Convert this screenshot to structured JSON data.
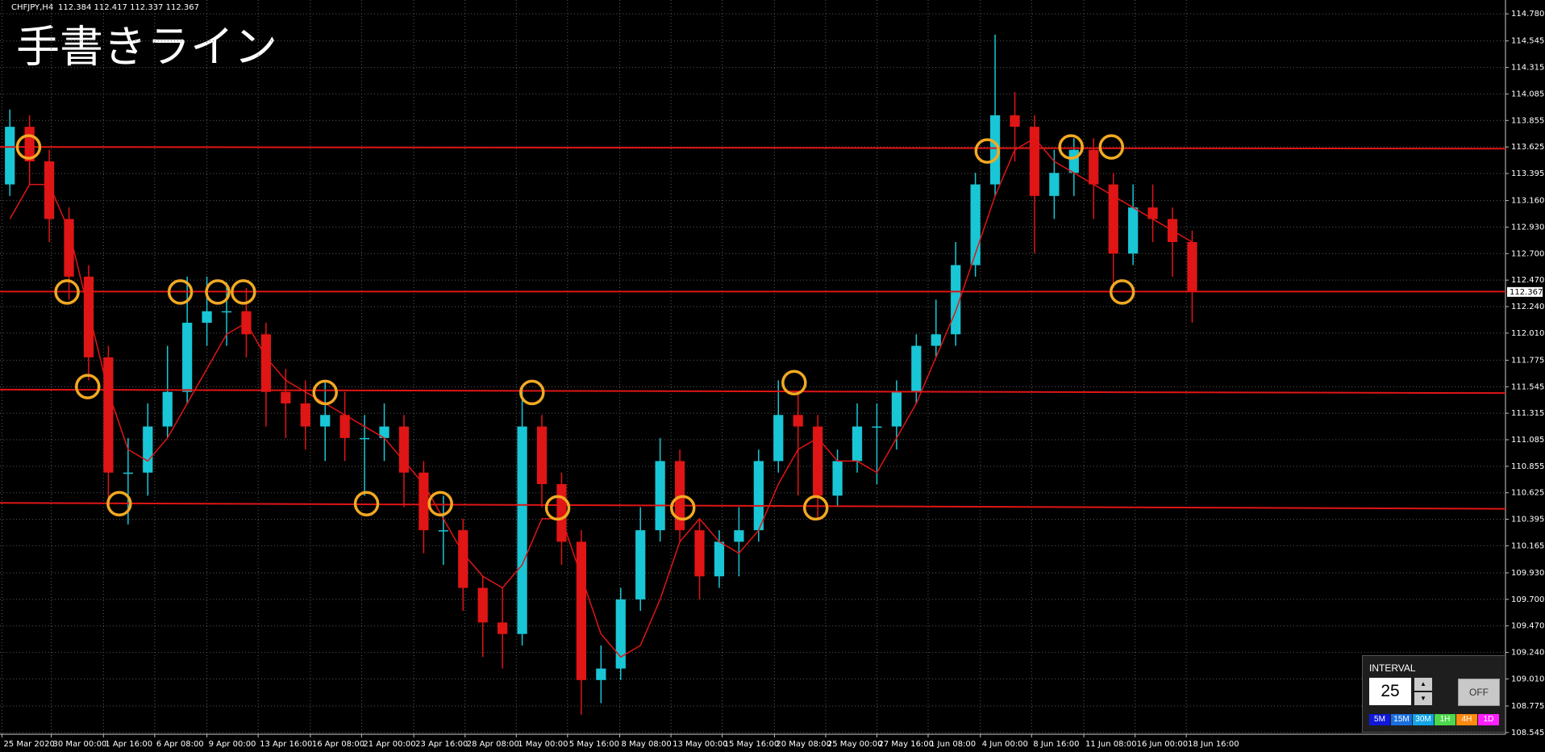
{
  "chart_data": {
    "type": "candlestick",
    "title": "手書きライン",
    "symbol": "CHFJPY,H4",
    "quote": "112.384 112.417 112.337 112.367",
    "current_price": 112.367,
    "xlim": [
      -0.5,
      75.9
    ],
    "ylim": [
      108.53,
      114.9
    ],
    "grid": true,
    "up_color": "#19c6d6",
    "down_color": "#e01515",
    "ma_color": "#e01515",
    "line_color": "#e01515",
    "marker_color": "#f2a922",
    "yticks": [
      {
        "value": 114.78,
        "label": "114.780"
      },
      114.545,
      114.315,
      114.085,
      113.855,
      113.625,
      113.395,
      {
        "value": 113.16,
        "label": "113.160"
      },
      {
        "value": 112.93,
        "label": "112.930"
      },
      {
        "value": 112.7,
        "label": "112.700"
      },
      {
        "value": 112.47,
        "label": "112.470"
      },
      {
        "value": 112.24,
        "label": "112.240"
      },
      {
        "value": 112.01,
        "label": "112.010"
      },
      111.775,
      111.545,
      111.315,
      111.085,
      110.855,
      110.625,
      110.395,
      110.165,
      {
        "value": 109.93,
        "label": "109.930"
      },
      {
        "value": 109.7,
        "label": "109.700"
      },
      {
        "value": 109.47,
        "label": "109.470"
      },
      {
        "value": 109.24,
        "label": "109.240"
      },
      {
        "value": 109.01,
        "label": "109.010"
      },
      108.775,
      108.545
    ],
    "xticks": [
      {
        "value": -0.4,
        "label": "25 Mar 2020"
      },
      {
        "value": 2.1,
        "label": "30 Mar 00:00"
      },
      {
        "value": 4.75,
        "label": "1 Apr 16:00"
      },
      {
        "value": 7.35,
        "label": "6 Apr 08:00"
      },
      {
        "value": 10,
        "label": "9 Apr 00:00"
      },
      {
        "value": 12.6,
        "label": "13 Apr 16:00"
      },
      {
        "value": 15.25,
        "label": "16 Apr 08:00"
      },
      {
        "value": 17.85,
        "label": "21 Apr 00:00"
      },
      {
        "value": 20.5,
        "label": "23 Apr 16:00"
      },
      {
        "value": 23.1,
        "label": "28 Apr 08:00"
      },
      {
        "value": 25.7,
        "label": "1 May 00:00"
      },
      {
        "value": 28.3,
        "label": "5 May 16:00"
      },
      {
        "value": 30.95,
        "label": "8 May 08:00"
      },
      {
        "value": 33.55,
        "label": "13 May 00:00"
      },
      {
        "value": 36.15,
        "label": "15 May 16:00"
      },
      {
        "value": 38.8,
        "label": "20 May 08:00"
      },
      {
        "value": 41.4,
        "label": "25 May 00:00"
      },
      {
        "value": 44,
        "label": "27 May 16:00"
      },
      {
        "value": 46.6,
        "label": "1 Jun 08:00"
      },
      {
        "value": 49.25,
        "label": "4 Jun 00:00"
      },
      {
        "value": 51.85,
        "label": "8 Jun 16:00"
      },
      {
        "value": 54.5,
        "label": "11 Jun 08:00"
      },
      {
        "value": 57.1,
        "label": "16 Jun 00:00"
      },
      {
        "value": 59.7,
        "label": "18 Jun 16:00"
      }
    ],
    "candles": [
      [
        113.3,
        113.95,
        113.2,
        113.8
      ],
      [
        113.8,
        113.9,
        113.3,
        113.5
      ],
      [
        113.5,
        113.6,
        112.8,
        113.0
      ],
      [
        113.0,
        113.1,
        112.3,
        112.5
      ],
      [
        112.5,
        112.6,
        111.6,
        111.8
      ],
      [
        111.8,
        111.9,
        110.5,
        110.8
      ],
      [
        110.8,
        111.1,
        110.35,
        110.8
      ],
      [
        110.8,
        111.4,
        110.6,
        111.2
      ],
      [
        111.2,
        111.9,
        111.1,
        111.5
      ],
      [
        111.5,
        112.5,
        111.4,
        112.1
      ],
      [
        112.1,
        112.5,
        111.9,
        112.2
      ],
      [
        112.2,
        112.45,
        111.9,
        112.2
      ],
      [
        112.2,
        112.4,
        111.8,
        112.0
      ],
      [
        112.0,
        112.1,
        111.2,
        111.5
      ],
      [
        111.5,
        111.7,
        111.1,
        111.4
      ],
      [
        111.4,
        111.6,
        111.0,
        111.2
      ],
      [
        111.2,
        111.6,
        110.9,
        111.3
      ],
      [
        111.3,
        111.5,
        110.9,
        111.1
      ],
      [
        111.1,
        111.3,
        110.6,
        111.1
      ],
      [
        111.1,
        111.4,
        110.9,
        111.2
      ],
      [
        111.2,
        111.3,
        110.5,
        110.8
      ],
      [
        110.8,
        110.9,
        110.1,
        110.3
      ],
      [
        110.3,
        110.6,
        110.0,
        110.3
      ],
      [
        110.3,
        110.4,
        109.6,
        109.8
      ],
      [
        109.8,
        109.9,
        109.2,
        109.5
      ],
      [
        109.5,
        109.8,
        109.1,
        109.4
      ],
      [
        109.4,
        111.55,
        109.3,
        111.2
      ],
      [
        111.2,
        111.3,
        110.5,
        110.7
      ],
      [
        110.7,
        110.8,
        110.0,
        110.2
      ],
      [
        110.2,
        110.3,
        108.7,
        109.0
      ],
      [
        109.0,
        109.3,
        108.8,
        109.1
      ],
      [
        109.1,
        109.8,
        109.0,
        109.7
      ],
      [
        109.7,
        110.5,
        109.6,
        110.3
      ],
      [
        110.3,
        111.1,
        110.2,
        110.9
      ],
      [
        110.9,
        111.0,
        110.2,
        110.3
      ],
      [
        110.3,
        110.4,
        109.7,
        109.9
      ],
      [
        109.9,
        110.3,
        109.8,
        110.2
      ],
      [
        110.2,
        110.5,
        109.9,
        110.3
      ],
      [
        110.3,
        111.0,
        110.2,
        110.9
      ],
      [
        110.9,
        111.6,
        110.8,
        111.3
      ],
      [
        111.3,
        111.5,
        110.6,
        111.2
      ],
      [
        111.2,
        111.3,
        110.4,
        110.6
      ],
      [
        110.6,
        111.0,
        110.5,
        110.9
      ],
      [
        110.9,
        111.4,
        110.8,
        111.2
      ],
      [
        111.2,
        111.4,
        110.7,
        111.2
      ],
      [
        111.2,
        111.6,
        111.0,
        111.5
      ],
      [
        111.5,
        112.0,
        111.4,
        111.9
      ],
      [
        111.9,
        112.3,
        111.8,
        112.0
      ],
      [
        112.0,
        112.8,
        111.9,
        112.6
      ],
      [
        112.6,
        113.4,
        112.5,
        113.3
      ],
      [
        113.3,
        114.6,
        113.2,
        113.9
      ],
      [
        113.9,
        114.1,
        113.5,
        113.8
      ],
      [
        113.8,
        113.9,
        112.7,
        113.2
      ],
      [
        113.2,
        113.6,
        113.0,
        113.4
      ],
      [
        113.4,
        113.7,
        113.2,
        113.6
      ],
      [
        113.6,
        113.7,
        113.0,
        113.3
      ],
      [
        113.3,
        113.4,
        112.4,
        112.7
      ],
      [
        112.7,
        113.3,
        112.6,
        113.1
      ],
      [
        113.1,
        113.3,
        112.8,
        113.0
      ],
      [
        113.0,
        113.1,
        112.5,
        112.8
      ],
      [
        112.8,
        112.9,
        112.1,
        112.37
      ]
    ],
    "ma": {
      "values": [
        113.0,
        113.3,
        113.3,
        112.9,
        112.2,
        111.5,
        111.0,
        110.9,
        111.1,
        111.4,
        111.7,
        112.0,
        112.1,
        111.8,
        111.6,
        111.5,
        111.4,
        111.3,
        111.2,
        111.1,
        110.9,
        110.7,
        110.4,
        110.1,
        109.9,
        109.8,
        110.0,
        110.4,
        110.4,
        109.9,
        109.4,
        109.2,
        109.3,
        109.7,
        110.2,
        110.4,
        110.2,
        110.1,
        110.3,
        110.7,
        111.0,
        111.1,
        110.9,
        110.9,
        110.8,
        111.1,
        111.4,
        111.8,
        112.2,
        112.7,
        113.2,
        113.6,
        113.7,
        113.5,
        113.4,
        113.3,
        113.2,
        113.1,
        113.0,
        112.9,
        112.8
      ]
    },
    "lines": [
      {
        "start": 113.625,
        "end": 113.61
      },
      {
        "start": 112.37,
        "end": 112.37
      },
      {
        "start": 111.52,
        "end": 111.49
      },
      {
        "start": 110.537,
        "end": 110.486
      }
    ],
    "markers": [
      {
        "x": 0.95,
        "price": 113.625
      },
      {
        "x": 2.9,
        "price": 112.367
      },
      {
        "x": 3.95,
        "price": 111.546
      },
      {
        "x": 5.55,
        "price": 110.53
      },
      {
        "x": 8.65,
        "price": 112.367
      },
      {
        "x": 10.55,
        "price": 112.367
      },
      {
        "x": 11.85,
        "price": 112.367
      },
      {
        "x": 16,
        "price": 111.495
      },
      {
        "x": 18.1,
        "price": 110.53
      },
      {
        "x": 21.85,
        "price": 110.53
      },
      {
        "x": 26.5,
        "price": 111.495
      },
      {
        "x": 27.8,
        "price": 110.494
      },
      {
        "x": 34.15,
        "price": 110.494
      },
      {
        "x": 39.8,
        "price": 111.58
      },
      {
        "x": 40.9,
        "price": 110.494
      },
      {
        "x": 49.6,
        "price": 113.59
      },
      {
        "x": 53.85,
        "price": 113.625
      },
      {
        "x": 55.9,
        "price": 113.625
      },
      {
        "x": 56.45,
        "price": 112.367
      }
    ]
  },
  "panel": {
    "label": "INTERVAL",
    "interval": 25,
    "toggle": "OFF",
    "buttons": [
      {
        "text": "5M",
        "color": "#1018d8"
      },
      {
        "text": "15M",
        "color": "#1a6fe0"
      },
      {
        "text": "30M",
        "color": "#12a6e8"
      },
      {
        "text": "1H",
        "color": "#4cd84c"
      },
      {
        "text": "4H",
        "color": "#ff8a10"
      },
      {
        "text": "1D",
        "color": "#ff20ff"
      }
    ]
  }
}
